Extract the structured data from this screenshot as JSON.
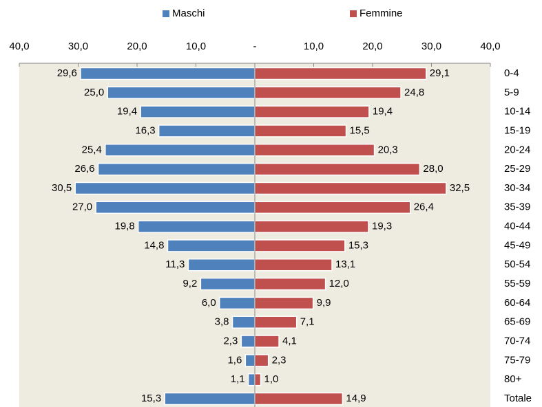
{
  "chart_data": {
    "type": "pyramid",
    "categories": [
      "0-4",
      "5-9",
      "10-14",
      "15-19",
      "20-24",
      "25-29",
      "30-34",
      "35-39",
      "40-44",
      "45-49",
      "50-54",
      "55-59",
      "60-64",
      "65-69",
      "70-74",
      "75-79",
      "80+",
      "Totale"
    ],
    "series": [
      {
        "name": "Maschi",
        "color": "#4f81bd",
        "side": "left",
        "values": [
          29.6,
          25.0,
          19.4,
          16.3,
          25.4,
          26.6,
          30.5,
          27.0,
          19.8,
          14.8,
          11.3,
          9.2,
          6.0,
          3.8,
          2.3,
          1.6,
          1.1,
          15.3
        ],
        "value_labels": [
          "29,6",
          "25,0",
          "19,4",
          "16,3",
          "25,4",
          "26,6",
          "30,5",
          "27,0",
          "19,8",
          "14,8",
          "11,3",
          "9,2",
          "6,0",
          "3,8",
          "2,3",
          "1,6",
          "1,1",
          "15,3"
        ]
      },
      {
        "name": "Femmine",
        "color": "#c0504d",
        "side": "right",
        "values": [
          29.1,
          24.8,
          19.4,
          15.5,
          20.3,
          28.0,
          32.5,
          26.4,
          19.3,
          15.3,
          13.1,
          12.0,
          9.9,
          7.1,
          4.1,
          2.3,
          1.0,
          14.9
        ],
        "value_labels": [
          "29,1",
          "24,8",
          "19,4",
          "15,5",
          "20,3",
          "28,0",
          "32,5",
          "26,4",
          "19,3",
          "15,3",
          "13,1",
          "12,0",
          "9,9",
          "7,1",
          "4,1",
          "2,3",
          "1,0",
          "14,9"
        ]
      }
    ],
    "xlim": [
      -40,
      40
    ],
    "xticks": [
      {
        "value": -40,
        "label": "40,0"
      },
      {
        "value": -30,
        "label": "30,0"
      },
      {
        "value": -20,
        "label": "20,0"
      },
      {
        "value": -10,
        "label": "10,0"
      },
      {
        "value": 0,
        "label": "-"
      },
      {
        "value": 10,
        "label": "10,0"
      },
      {
        "value": 20,
        "label": "20,0"
      },
      {
        "value": 30,
        "label": "30,0"
      },
      {
        "value": 40,
        "label": "40,0"
      }
    ],
    "background": "#eeece1",
    "legend": "top"
  }
}
